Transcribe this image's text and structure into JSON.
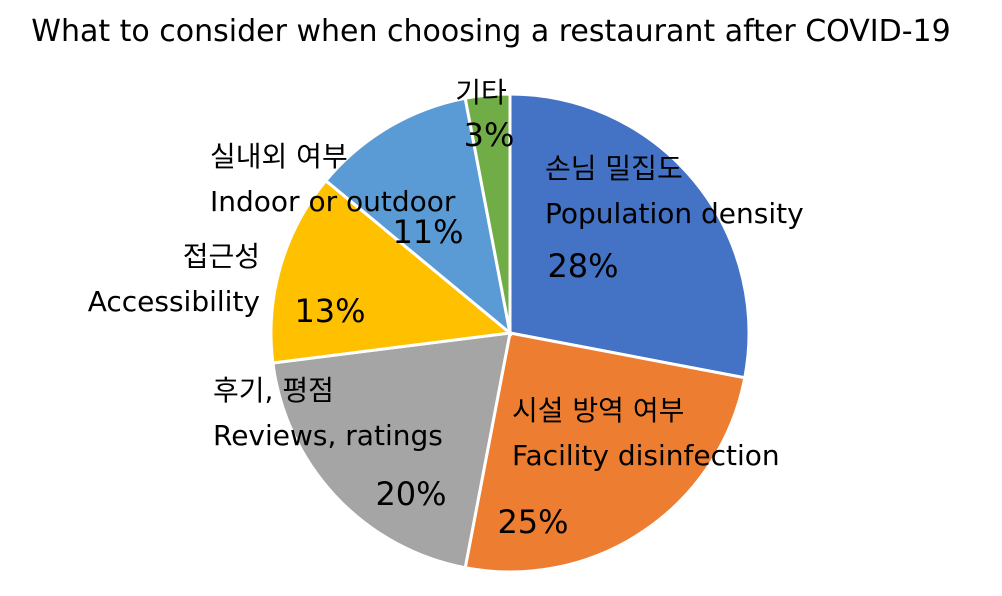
{
  "chart_data": {
    "type": "pie",
    "title": "What to consider when choosing a restaurant after COVID-19",
    "slices": [
      {
        "label_ko": "손님 밀집도",
        "label_en": "Population density",
        "value": 28,
        "value_label": "28%",
        "color": "#4472C4"
      },
      {
        "label_ko": "시설 방역 여부",
        "label_en": "Facility disinfection",
        "value": 25,
        "value_label": "25%",
        "color": "#ED7D31"
      },
      {
        "label_ko": "후기, 평점",
        "label_en": "Reviews, ratings",
        "value": 20,
        "value_label": "20%",
        "color": "#A5A5A5"
      },
      {
        "label_ko": "접근성",
        "label_en": "Accessibility",
        "value": 13,
        "value_label": "13%",
        "color": "#FFC000"
      },
      {
        "label_ko": "실내외 여부",
        "label_en": "Indoor or outdoor",
        "value": 11,
        "value_label": "11%",
        "color": "#5B9BD5"
      },
      {
        "label_ko": "기타",
        "label_en": "",
        "value": 3,
        "value_label": "3%",
        "color": "#70AD47"
      }
    ]
  }
}
